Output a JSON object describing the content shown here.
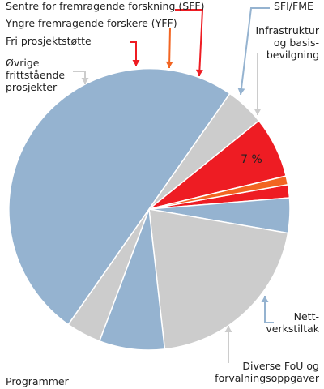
{
  "chart_data": {
    "type": "pie",
    "title": "",
    "start_angle_deg": -10,
    "direction": "clockwise",
    "slices": [
      {
        "key": "sff",
        "label": "Sentre for fremragende forskning (SFF)",
        "value": 1.5,
        "color": "#ee1c23"
      },
      {
        "key": "sfi",
        "label": "SFI/FME",
        "value": 4.0,
        "color": "#95b3d0"
      },
      {
        "key": "infra",
        "label": "Infrastruktur og basisbevilgning",
        "value": 20.5,
        "color": "#cccccc"
      },
      {
        "key": "nett",
        "label": "Nettverkstiltak",
        "value": 7.5,
        "color": "#95b3d0"
      },
      {
        "key": "diverse",
        "label": "Diverse FoU og forvalningsoppgaver",
        "value": 4.0,
        "color": "#cccccc"
      },
      {
        "key": "programmer",
        "label": "Programmer",
        "value": 50.0,
        "color": "#95b3d0"
      },
      {
        "key": "ovrige",
        "label": "Øvrige frittstående prosjekter",
        "value": 4.5,
        "color": "#cccccc"
      },
      {
        "key": "fri",
        "label": "Fri prosjektstøtte",
        "value": 7.0,
        "color": "#ee1c23"
      },
      {
        "key": "yff",
        "label": "Yngre fremragende forskere (YFF)",
        "value": 1.0,
        "color": "#f26522"
      }
    ],
    "data_labels": [
      {
        "slice": "fri",
        "text": "7 %"
      }
    ],
    "legend": "none (callout labels)"
  },
  "labels": {
    "sff": "Sentre for fremragende forskning (SFF)",
    "yff": "Yngre fremragende forskere (YFF)",
    "fri": "Fri prosjektstøtte",
    "ovrige_1": "Øvrige",
    "ovrige_2": "frittstående",
    "ovrige_3": "prosjekter",
    "sfi": "SFI/FME",
    "infra_1": "Infrastruktur",
    "infra_2": "og basis-",
    "infra_3": "bevilgning",
    "nett_1": "Nett-",
    "nett_2": "verkstiltak",
    "diverse_1": "Diverse FoU og",
    "diverse_2": "forvalningsoppgaver",
    "programmer": "Programmer"
  },
  "colors": {
    "red": "#ee1c23",
    "orange": "#f26522",
    "blue": "#95b3d0",
    "grey": "#cccccc",
    "slice_edge": "#ffffff"
  }
}
